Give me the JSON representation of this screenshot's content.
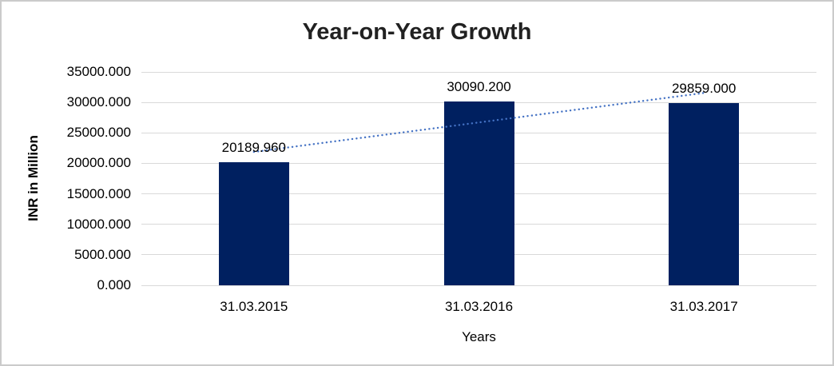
{
  "chart_data": {
    "type": "bar",
    "title": "Year-on-Year Growth",
    "categories": [
      "31.03.2015",
      "31.03.2016",
      "31.03.2017"
    ],
    "values": [
      20189.96,
      30090.2,
      29859.0
    ],
    "value_labels": [
      "20189.960",
      "30090.200",
      "29859.000"
    ],
    "xlabel": "Years",
    "ylabel": "INR in Million",
    "ylim": [
      0,
      35000
    ],
    "ytick_step": 5000,
    "ytick_labels": [
      "0.000",
      "5000.000",
      "10000.000",
      "15000.000",
      "20000.000",
      "25000.000",
      "30000.000",
      "35000.000"
    ],
    "grid": true,
    "legend": false,
    "trendline": {
      "type": "linear",
      "style": "dotted",
      "values": [
        21878.5,
        26713.1,
        31547.6
      ]
    },
    "colors": {
      "bar": "#002060",
      "trendline": "#4472C4",
      "gridline": "#d9d9d9",
      "text": "#000000",
      "title": "#212121",
      "frame_border": "#cbcbcb"
    }
  }
}
